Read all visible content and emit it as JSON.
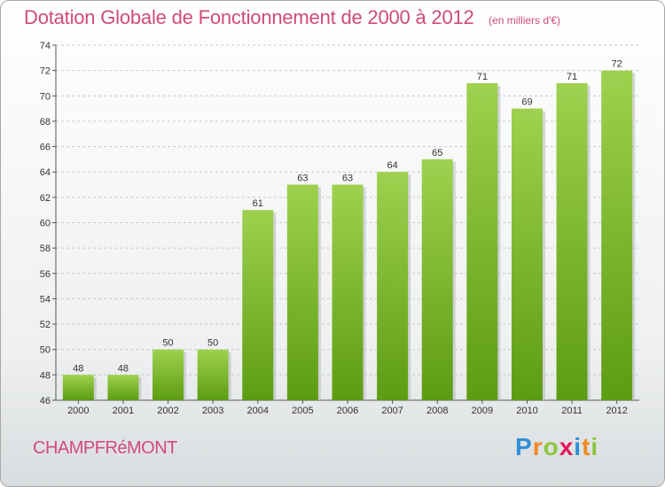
{
  "header": {
    "title": "Dotation Globale de Fonctionnement de 2000 à 2012",
    "unit": "(en milliers d'€)"
  },
  "footer": {
    "commune": "CHAMPFRéMONT",
    "logo_letters": [
      "P",
      "r",
      "o",
      "x",
      "i",
      "t",
      "i"
    ],
    "logo_colors": [
      "#2f8fd8",
      "#f08a24",
      "#8cc63f",
      "#e2185b",
      "#2f8fd8",
      "#f08a24",
      "#8cc63f"
    ]
  },
  "colors": {
    "bar_top": "#9ed14f",
    "bar_bottom": "#5c9c12",
    "bar_shadow": "#b9bcc0",
    "axis": "#555555",
    "grid": "#c8c8c8"
  },
  "chart_data": {
    "type": "bar",
    "title": "Dotation Globale de Fonctionnement de 2000 à 2012",
    "subtitle": "(en milliers d'€)",
    "categories": [
      "2000",
      "2001",
      "2002",
      "2003",
      "2004",
      "2005",
      "2006",
      "2007",
      "2008",
      "2009",
      "2010",
      "2011",
      "2012"
    ],
    "values": [
      48,
      48,
      50,
      50,
      61,
      63,
      63,
      64,
      65,
      71,
      69,
      71,
      72
    ],
    "ylim": [
      46,
      74
    ],
    "yticks": [
      46,
      48,
      50,
      52,
      54,
      56,
      58,
      60,
      62,
      64,
      66,
      68,
      70,
      72,
      74
    ],
    "grid": true,
    "legend": "none"
  }
}
